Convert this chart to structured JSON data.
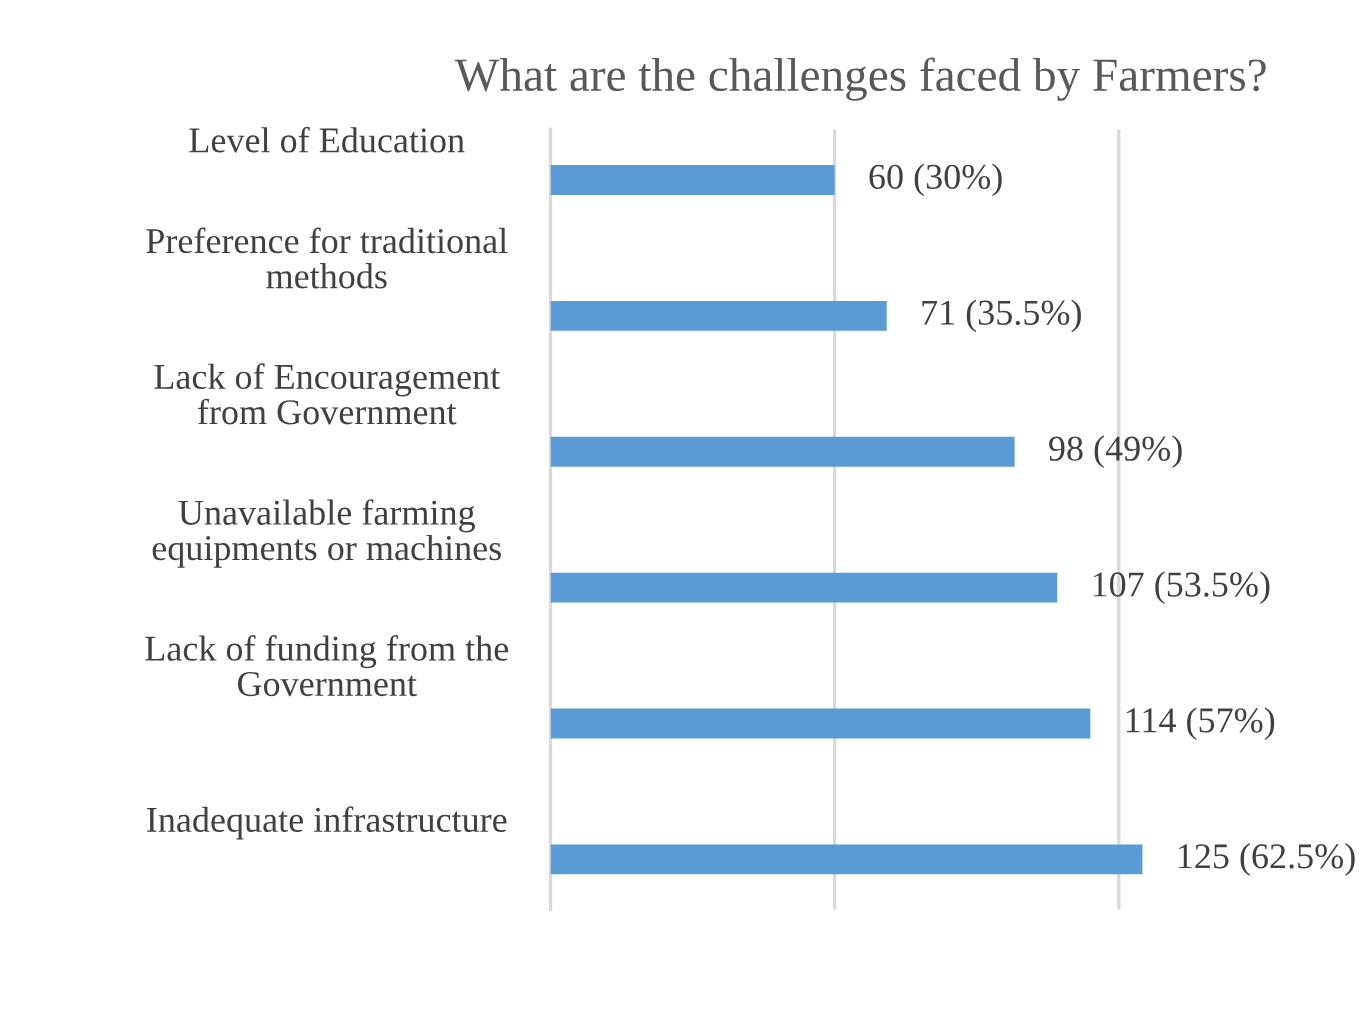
{
  "chart_data": {
    "type": "bar",
    "orientation": "horizontal",
    "title": "What are the challenges faced by Farmers?",
    "categories": [
      "Level of Education",
      "Preference for traditional methods",
      "Lack of Encouragement from Government",
      "Unavailable farming equipments or machines",
      "Lack of funding from the Government",
      "Inadequate infrastructure"
    ],
    "values": [
      60,
      71,
      98,
      107,
      114,
      125
    ],
    "value_labels": [
      "60 (30%)",
      "71 (35.5%)",
      "98 (49%)",
      "107 (53.5%)",
      "114 (57%)",
      "125 (62.5%)"
    ],
    "color": "#5b9bd5",
    "ref_lines": [
      {
        "axis": "x",
        "value": 60,
        "color": "#d9d9d9"
      },
      {
        "axis": "x",
        "value": 120,
        "color": "#d9d9d9"
      }
    ],
    "tick_labels": "y"
  }
}
